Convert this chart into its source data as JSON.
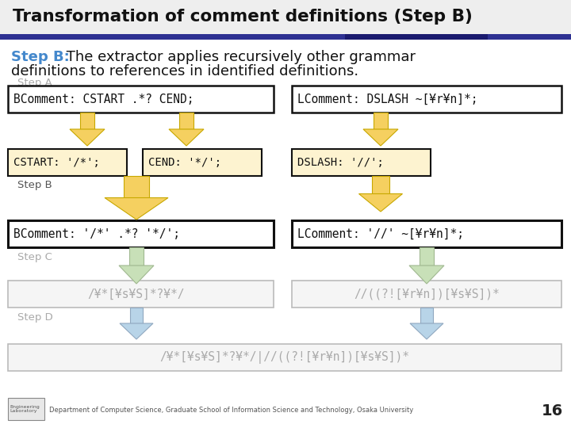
{
  "title": "Transformation of comment definitions (Step B)",
  "subtitle_bold": "Step B:",
  "subtitle_rest": " The extractor applies recursively other grammar",
  "subtitle_line2": "definitions to references in identified definitions.",
  "title_bg": "#f0f0f0",
  "bg_color": "#ffffff",
  "bar_color1": "#2e3192",
  "bar_color2": "#1a1a6e",
  "step_a_label": "Step A",
  "step_b_label": "Step B",
  "step_c_label": "Step C",
  "step_d_label": "Step D",
  "box_stepA_left": "BComment: CSTART .*? CEND;",
  "box_stepA_right": "LComment: DSLASH ~[¥r¥n]*;",
  "box_sub_left1": "CSTART: '/*';",
  "box_sub_left2": "CEND: '*/';",
  "box_sub_right": "DSLASH: '//';",
  "box_stepB_left": "BComment: '/*' .*? '*/';",
  "box_stepB_right": "LComment: '//' ~[¥r¥n]*;",
  "box_stepC_left": "/¥*[¥s¥S]*?¥*/",
  "box_stepC_right": "//((?![¥r¥n])[¥s¥S])*",
  "box_stepD_combined": "/¥*[¥s¥S]*?¥*/|//((?![¥r¥n])[¥s¥S])*",
  "arrow_yellow": "#f5d060",
  "arrow_yellow_edge": "#c8a800",
  "arrow_green": "#c8e0b8",
  "arrow_green_edge": "#a0b890",
  "arrow_blue": "#b8d4e8",
  "arrow_blue_edge": "#90a8c0",
  "box_yellow_fill": "#fdf3d0",
  "box_border_dark": "#111111",
  "box_border_light": "#bbbbbb",
  "text_gray": "#aaaaaa",
  "text_cyan": "#4488cc",
  "text_dark": "#111111",
  "footnote": "Department of Computer Science, Graduate School of Information Science and Technology, Osaka University",
  "page_num": "16"
}
